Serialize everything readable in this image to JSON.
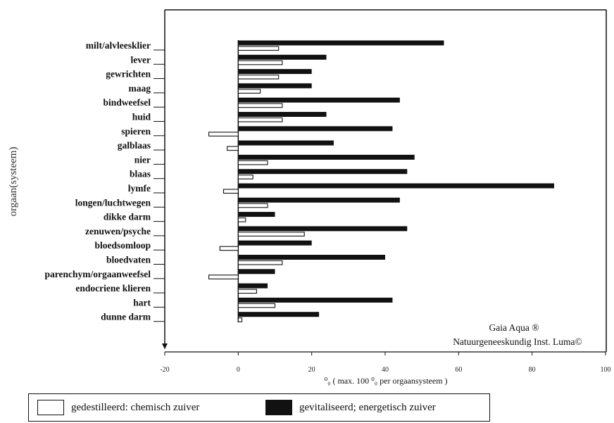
{
  "chart_data": {
    "type": "bar",
    "orientation": "horizontal",
    "ylabel": "orgaan(systeem)",
    "xlabel": "⁰₀  ( max. 100 ⁰₀ per orgaansysteem )",
    "xlim": [
      -20,
      100
    ],
    "xticks": [
      -20,
      0,
      20,
      40,
      60,
      80,
      100
    ],
    "categories": [
      "milt/alvleesklier",
      "lever",
      "gewrichten",
      "maag",
      "bindweefsel",
      "huid",
      "spieren",
      "galblaas",
      "nier",
      "blaas",
      "lymfe",
      "longen/luchtwegen",
      "dikke darm",
      "zenuwen/psyche",
      "bloedsomloop",
      "bloedvaten",
      "parenchym/orgaanweefsel",
      "endocriene klieren",
      "hart",
      "dunne darm"
    ],
    "series": [
      {
        "name": "gedestilleerd: chemisch zuiver",
        "color": "#ffffff",
        "values": [
          11,
          12,
          11,
          6,
          12,
          12,
          -8,
          -3,
          8,
          4,
          -4,
          8,
          2,
          18,
          -5,
          12,
          -8,
          5,
          10,
          1
        ]
      },
      {
        "name": "gevitaliseerd; energetisch zuiver",
        "color": "#111111",
        "values": [
          56,
          24,
          20,
          20,
          44,
          24,
          42,
          26,
          48,
          46,
          86,
          44,
          10,
          46,
          20,
          40,
          10,
          8,
          42,
          22
        ]
      }
    ],
    "annotations": [
      "Gaia Aqua ®",
      "Natuurgeneeskundig Inst. Luma©"
    ],
    "legend_position": "bottom"
  },
  "legend": {
    "white_label": "gedestilleerd: chemisch zuiver",
    "black_label": "gevitaliseerd; energetisch zuiver"
  }
}
